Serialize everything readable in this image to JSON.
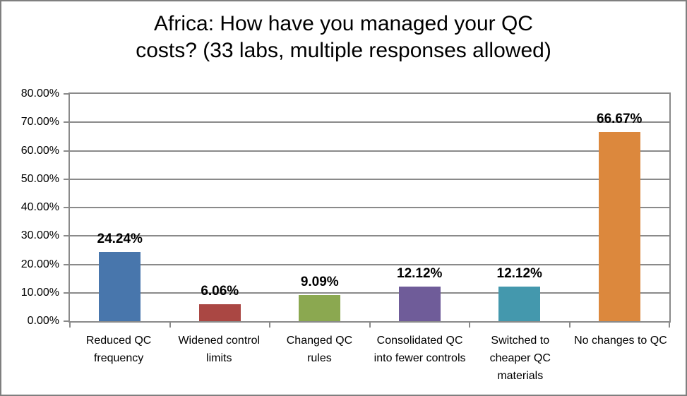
{
  "chart": {
    "title_lines": [
      "Africa: How have you managed your QC",
      "costs? (33 labs, multiple responses allowed)"
    ],
    "colors": {
      "axis": "#8A8A8A",
      "gridline": "#8A8A8A",
      "frame_border": "#7F7F7F",
      "background": "#FFFFFF",
      "title_text": "#000000",
      "label_text": "#000000"
    }
  },
  "chart_data": {
    "type": "bar",
    "title": "Africa: How have you managed your QC costs? (33 labs, multiple responses allowed)",
    "categories": [
      "Reduced QC frequency",
      "Widened control limits",
      "Changed QC rules",
      "Consolidated QC into fewer controls",
      "Switched to cheaper QC materials",
      "No changes to QC"
    ],
    "values": [
      24.24,
      6.06,
      9.09,
      12.12,
      12.12,
      66.67
    ],
    "value_labels": [
      "24.24%",
      "6.06%",
      "9.09%",
      "12.12%",
      "12.12%",
      "66.67%"
    ],
    "series_colors": [
      "#4876AC",
      "#AA4743",
      "#8BA850",
      "#6F5C99",
      "#4498AD",
      "#DC883D"
    ],
    "xlabel": "",
    "ylabel": "",
    "ylim": [
      0,
      80
    ],
    "ytick_step": 10,
    "ytick_labels": [
      "0.00%",
      "10.00%",
      "20.00%",
      "30.00%",
      "40.00%",
      "50.00%",
      "60.00%",
      "70.00%",
      "80.00%"
    ],
    "grid": "horizontal",
    "legend": "none",
    "data_labels": "above-bars"
  }
}
